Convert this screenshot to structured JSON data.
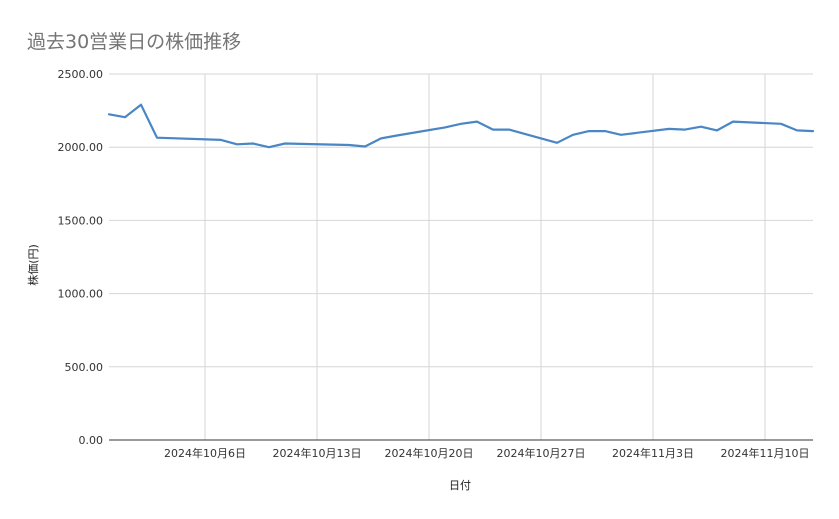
{
  "chart_data": {
    "type": "line",
    "title": "過去30営業日の株価推移",
    "xlabel": "日付",
    "ylabel": "株価(円)",
    "ylim": [
      0,
      2500
    ],
    "y_ticks": [
      0,
      500,
      1000,
      1500,
      2000,
      2500
    ],
    "y_tick_labels": [
      "0.00",
      "500.00",
      "1000.00",
      "1500.00",
      "2000.00",
      "2500.00"
    ],
    "xlim": [
      "2024-09-30",
      "2024-11-13"
    ],
    "x_ticks": [
      "2024-10-06",
      "2024-10-13",
      "2024-10-20",
      "2024-10-27",
      "2024-11-03",
      "2024-11-10"
    ],
    "x_tick_labels": [
      "2024年10月6日",
      "2024年10月13日",
      "2024年10月20日",
      "2024年10月27日",
      "2024年11月3日",
      "2024年11月10日"
    ],
    "grid": true,
    "legend": "none",
    "series": [
      {
        "color": "#4a86c5",
        "x": [
          "2024-09-30",
          "2024-10-01",
          "2024-10-02",
          "2024-10-03",
          "2024-10-07",
          "2024-10-08",
          "2024-10-09",
          "2024-10-10",
          "2024-10-11",
          "2024-10-15",
          "2024-10-16",
          "2024-10-17",
          "2024-10-18",
          "2024-10-21",
          "2024-10-22",
          "2024-10-23",
          "2024-10-24",
          "2024-10-25",
          "2024-10-28",
          "2024-10-29",
          "2024-10-30",
          "2024-10-31",
          "2024-11-01",
          "2024-11-04",
          "2024-11-05",
          "2024-11-06",
          "2024-11-07",
          "2024-11-08",
          "2024-11-11",
          "2024-11-12",
          "2024-11-13"
        ],
        "values": [
          2225,
          2205,
          2290,
          2065,
          2050,
          2020,
          2025,
          2000,
          2025,
          2015,
          2005,
          2060,
          2080,
          2135,
          2160,
          2175,
          2120,
          2120,
          2030,
          2085,
          2110,
          2110,
          2085,
          2125,
          2120,
          2140,
          2115,
          2175,
          2160,
          2115,
          2110
        ]
      }
    ]
  }
}
